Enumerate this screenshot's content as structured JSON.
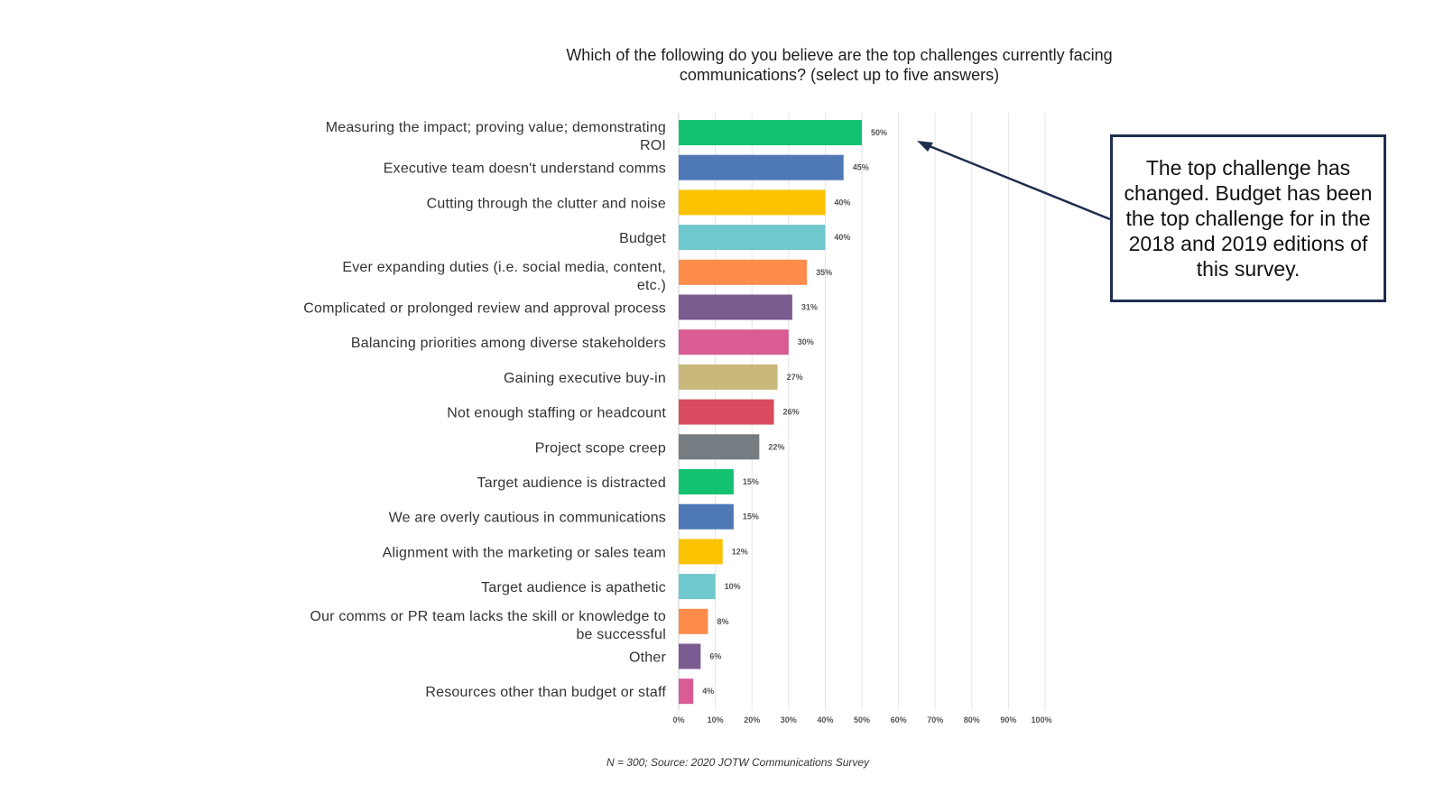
{
  "chart_data": {
    "type": "bar",
    "orientation": "horizontal",
    "title": "Which of the following do you believe are the top challenges currently facing communications? (select up to five answers)",
    "categories": [
      "Measuring the impact; proving value; demonstrating ROI",
      "Executive team doesn't understand comms",
      "Cutting through the clutter and noise",
      "Budget",
      "Ever expanding duties (i.e. social media, content, etc.)",
      "Complicated or prolonged review and approval process",
      "Balancing priorities among diverse stakeholders",
      "Gaining executive buy-in",
      "Not enough staffing or headcount",
      "Project scope creep",
      "Target audience is distracted",
      "We are overly cautious in communications",
      "Alignment with the marketing or sales team",
      "Target audience is apathetic",
      "Our comms or PR team lacks the skill or knowledge to be successful",
      "Other",
      "Resources other than budget or staff"
    ],
    "values": [
      50,
      45,
      40,
      40,
      35,
      31,
      30,
      27,
      26,
      22,
      15,
      15,
      12,
      10,
      8,
      6,
      4
    ],
    "value_labels": [
      "50%",
      "45%",
      "40%",
      "40%",
      "35%",
      "31%",
      "30%",
      "27%",
      "26%",
      "22%",
      "15%",
      "15%",
      "12%",
      "10%",
      "8%",
      "6%",
      "4%"
    ],
    "colors": [
      "#12c271",
      "#4f78b7",
      "#fbc200",
      "#6fc8cd",
      "#ff8c4a",
      "#7c5b91",
      "#d95c94",
      "#c9b87c",
      "#d94c5f",
      "#757c82",
      "#12c271",
      "#4f78b7",
      "#fbc200",
      "#6fc8cd",
      "#ff8c4a",
      "#7c5b91",
      "#d95c94"
    ],
    "xlim": [
      0,
      100
    ],
    "x_ticks": [
      "0%",
      "10%",
      "20%",
      "30%",
      "40%",
      "50%",
      "60%",
      "70%",
      "80%",
      "90%",
      "100%"
    ],
    "grid": "vertical"
  },
  "callout": {
    "text": "The top challenge has changed. Budget has been the top challenge for in the 2018 and 2019 editions of this survey."
  },
  "source_note": "N = 300; Source: 2020 JOTW Communications Survey"
}
